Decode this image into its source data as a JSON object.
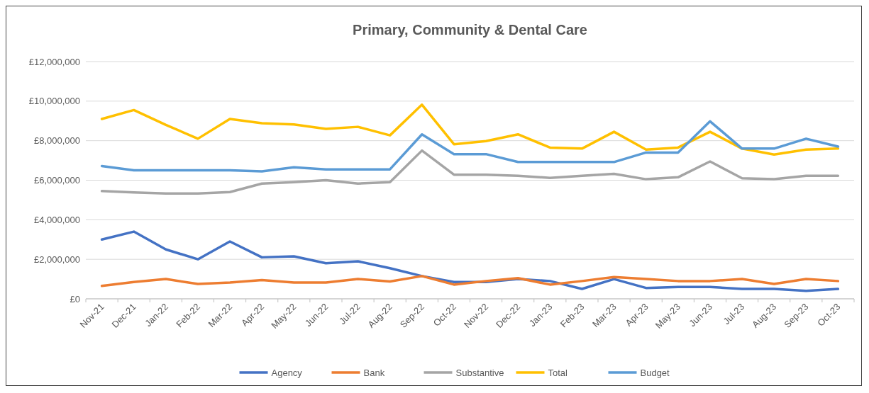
{
  "chart_data": {
    "type": "line",
    "title": "Primary, Community & Dental Care",
    "categories": [
      "Nov-21",
      "Dec-21",
      "Jan-22",
      "Feb-22",
      "Mar-22",
      "Apr-22",
      "May-22",
      "Jun-22",
      "Jul-22",
      "Aug-22",
      "Sep-22",
      "Oct-22",
      "Nov-22",
      "Dec-22",
      "Jan-23",
      "Feb-23",
      "Mar-23",
      "Apr-23",
      "May-23",
      "Jun-23",
      "Jul-23",
      "Aug-23",
      "Sep-23",
      "Oct-23"
    ],
    "series": [
      {
        "name": "Agency",
        "color": "#4472c4",
        "values": [
          3000000,
          3400000,
          2500000,
          2000000,
          2900000,
          2100000,
          2150000,
          1800000,
          1900000,
          1550000,
          1150000,
          850000,
          850000,
          1000000,
          900000,
          500000,
          1000000,
          550000,
          600000,
          600000,
          500000,
          500000,
          400000,
          500000
        ]
      },
      {
        "name": "Bank",
        "color": "#ed7d31",
        "values": [
          650000,
          850000,
          1000000,
          750000,
          820000,
          950000,
          820000,
          820000,
          1000000,
          880000,
          1150000,
          720000,
          900000,
          1050000,
          720000,
          900000,
          1100000,
          1000000,
          900000,
          900000,
          1000000,
          750000,
          1000000,
          900000
        ]
      },
      {
        "name": "Substantive",
        "color": "#a5a5a5",
        "values": [
          5450000,
          5380000,
          5330000,
          5330000,
          5400000,
          5830000,
          5900000,
          6000000,
          5830000,
          5900000,
          7500000,
          6280000,
          6280000,
          6220000,
          6120000,
          6220000,
          6320000,
          6050000,
          6150000,
          6950000,
          6100000,
          6050000,
          6220000,
          6220000
        ]
      },
      {
        "name": "Total",
        "color": "#ffc000",
        "values": [
          9100000,
          9550000,
          8800000,
          8100000,
          9100000,
          8880000,
          8820000,
          8600000,
          8700000,
          8270000,
          9820000,
          7820000,
          7980000,
          8320000,
          7650000,
          7600000,
          8450000,
          7550000,
          7650000,
          8450000,
          7600000,
          7300000,
          7550000,
          7600000
        ]
      },
      {
        "name": "Budget",
        "color": "#5b9bd5",
        "values": [
          6720000,
          6500000,
          6500000,
          6500000,
          6500000,
          6450000,
          6650000,
          6550000,
          6550000,
          6550000,
          8320000,
          7320000,
          7320000,
          6920000,
          6920000,
          6920000,
          6920000,
          7400000,
          7400000,
          8980000,
          7600000,
          7600000,
          8100000,
          7700000
        ]
      }
    ],
    "ylim": [
      0,
      12000000
    ],
    "yticks": [
      {
        "value": 0,
        "label": "£0"
      },
      {
        "value": 2000000,
        "label": "£2,000,000"
      },
      {
        "value": 4000000,
        "label": "£4,000,000"
      },
      {
        "value": 6000000,
        "label": "£6,000,000"
      },
      {
        "value": 8000000,
        "label": "£8,000,000"
      },
      {
        "value": 10000000,
        "label": "£10,000,000"
      },
      {
        "value": 12000000,
        "label": "£12,000,000"
      }
    ],
    "grid": "y",
    "legend": "bottom",
    "marker": "none",
    "line_style": "solid"
  }
}
